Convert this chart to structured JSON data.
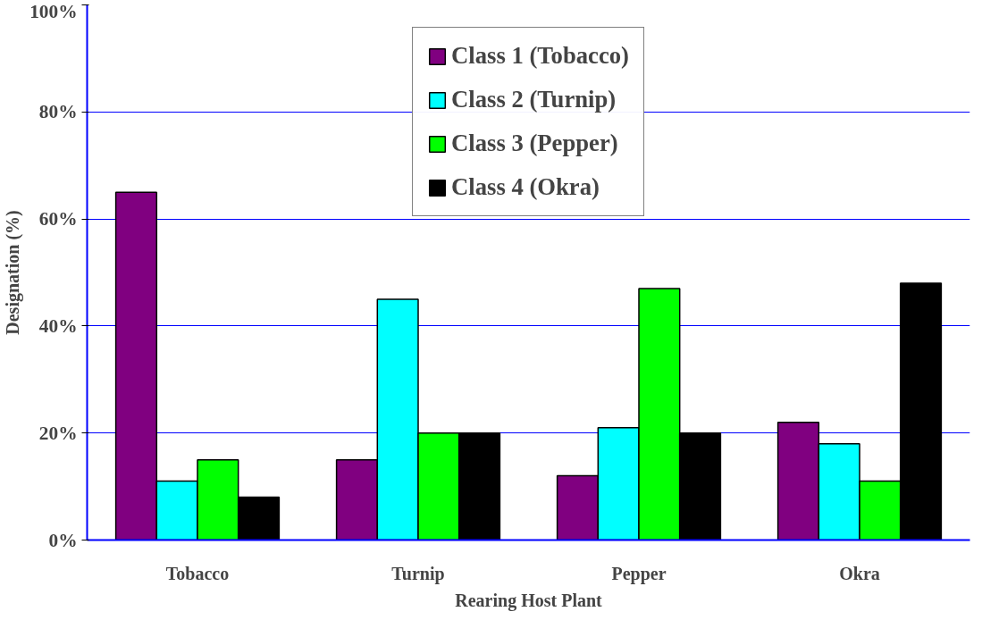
{
  "chart_data": {
    "type": "bar",
    "xlabel": "Rearing Host Plant",
    "ylabel": "Designation (%)",
    "categories": [
      "Tobacco",
      "Turnip",
      "Pepper",
      "Okra"
    ],
    "series": [
      {
        "name": "Class 1 (Tobacco)",
        "color": "#800080",
        "values": [
          65,
          15,
          12,
          22
        ]
      },
      {
        "name": "Class 2 (Turnip)",
        "color": "#00ffff",
        "values": [
          11,
          45,
          21,
          18
        ]
      },
      {
        "name": "Class 3 (Pepper)",
        "color": "#00ff00",
        "values": [
          15,
          20,
          47,
          11
        ]
      },
      {
        "name": "Class 4 (Okra)",
        "color": "#000000",
        "values": [
          8,
          20,
          20,
          48
        ]
      }
    ],
    "ylim": [
      0,
      100
    ],
    "yticks": [
      {
        "value": 0,
        "label": "0%"
      },
      {
        "value": 20,
        "label": "20%"
      },
      {
        "value": 40,
        "label": "40%"
      },
      {
        "value": 60,
        "label": "60%"
      },
      {
        "value": 80,
        "label": "80%"
      },
      {
        "value": 100,
        "label": "100%"
      }
    ],
    "grid": "y",
    "legend": "top"
  }
}
